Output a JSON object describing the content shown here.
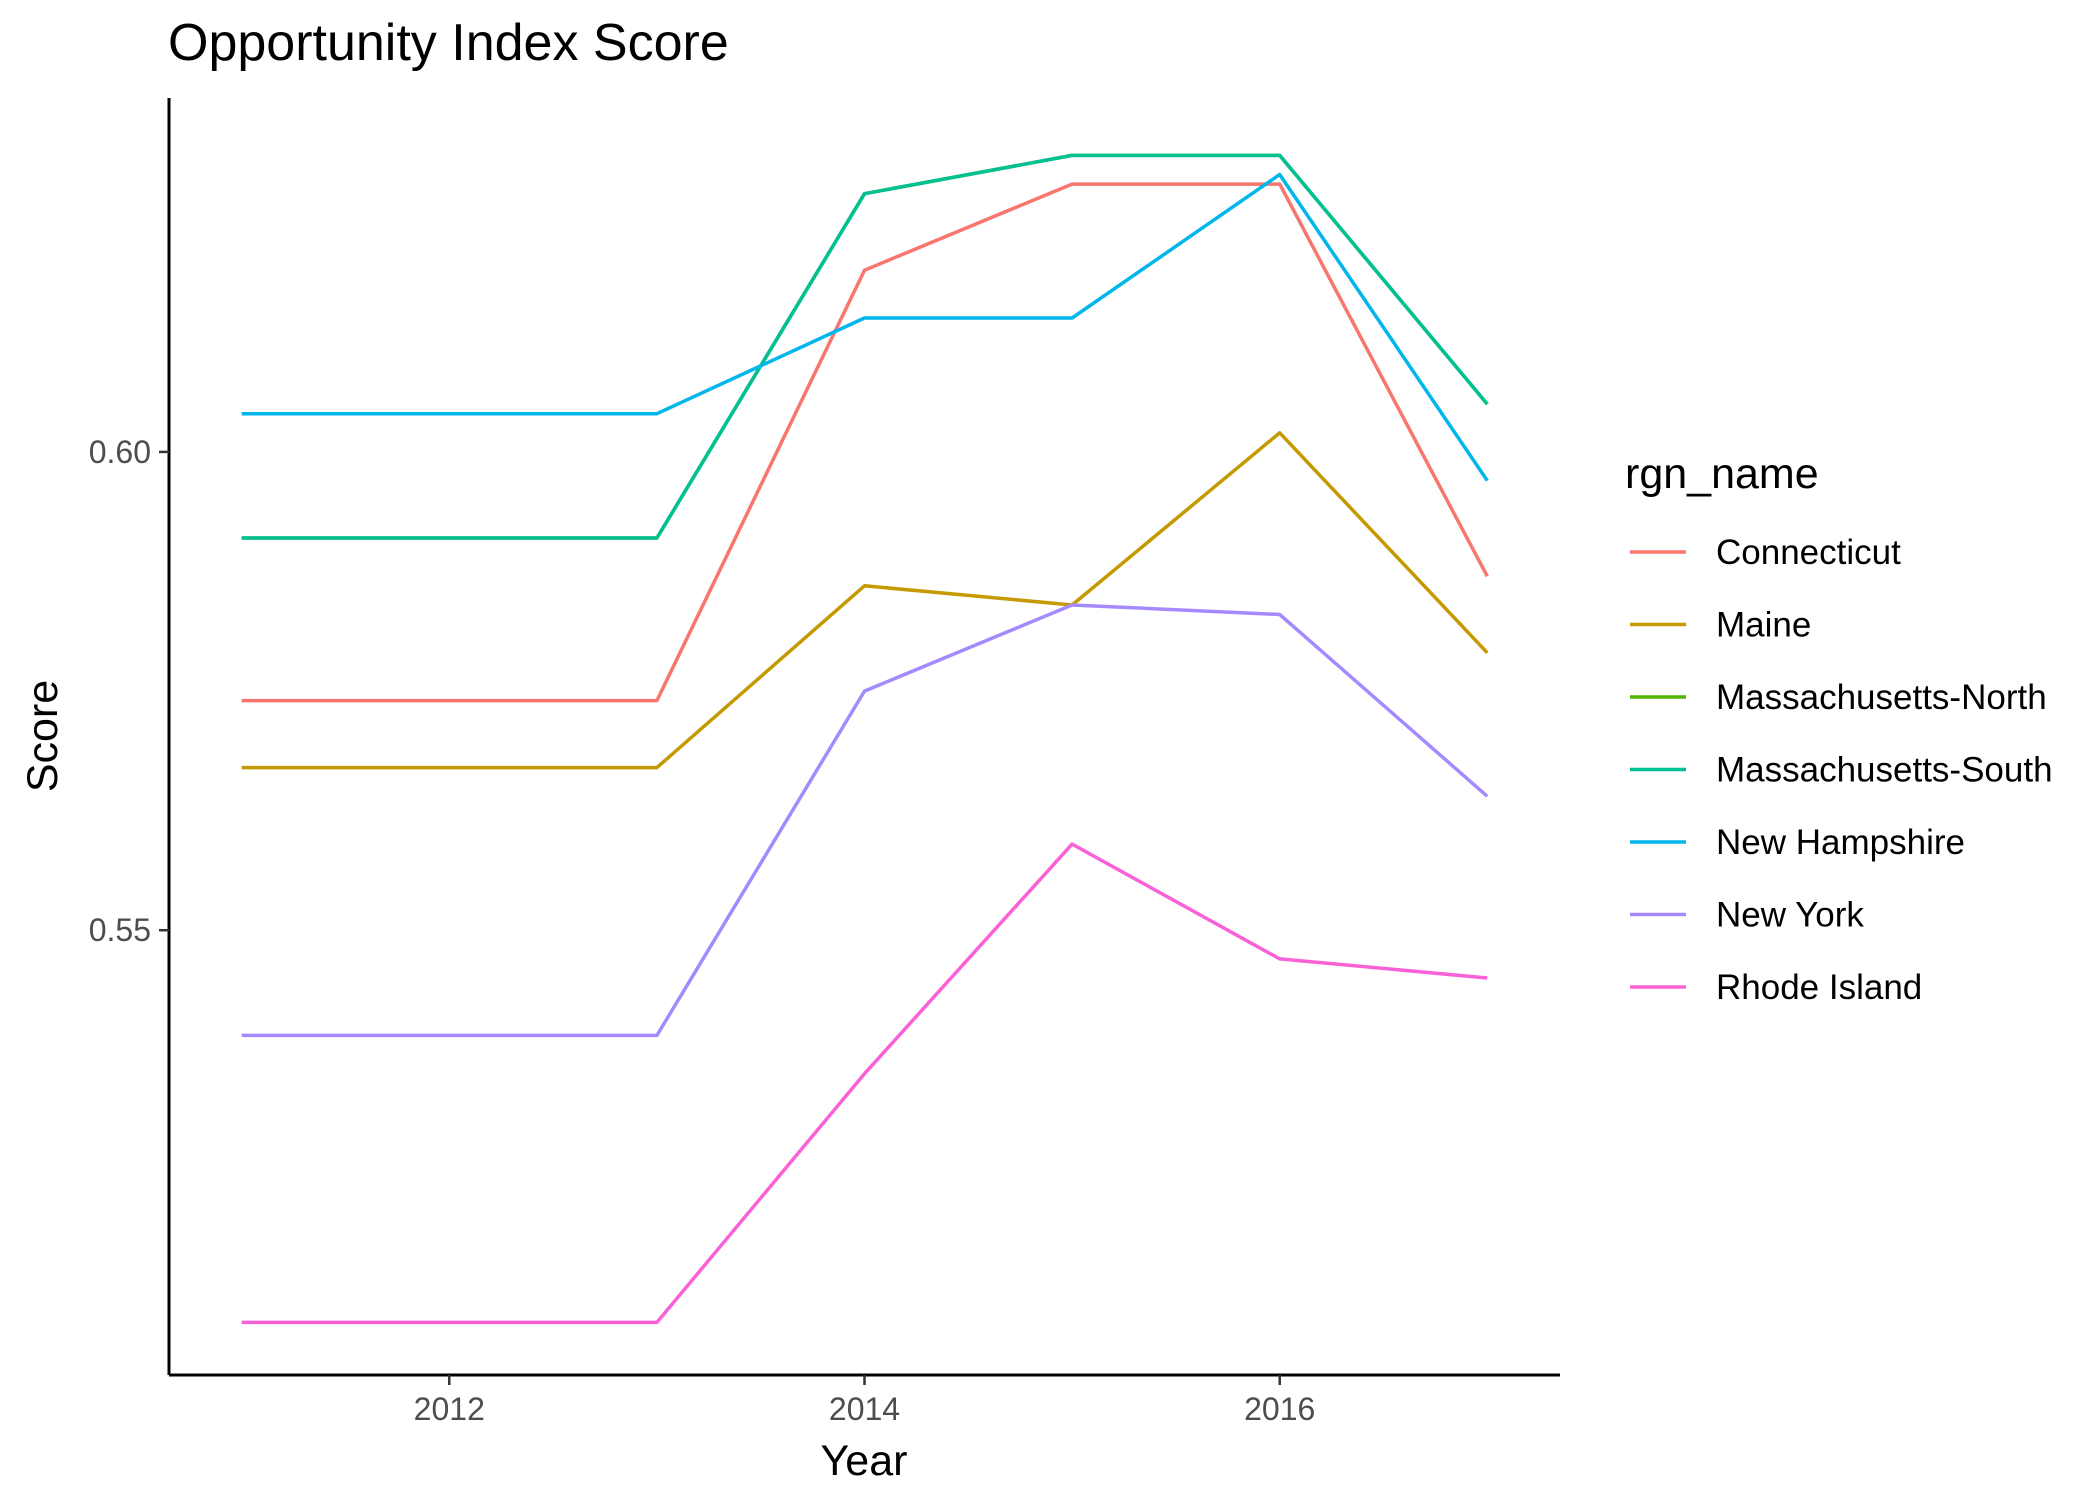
{
  "chart_data": {
    "type": "line",
    "title": "Opportunity Index Score",
    "xlabel": "Year",
    "ylabel": "Score",
    "x": [
      2011,
      2012,
      2013,
      2014,
      2015,
      2016,
      2017
    ],
    "xlim": [
      2010.65,
      2017.35
    ],
    "ylim": [
      0.5035,
      0.637
    ],
    "x_ticks": [
      2012,
      2014,
      2016
    ],
    "x_tick_labels": [
      "2012",
      "2014",
      "2016"
    ],
    "y_ticks": [
      0.55,
      0.6
    ],
    "y_tick_labels": [
      "0.55",
      "0.60"
    ],
    "grid": false,
    "legend_title": "rgn_name",
    "legend_position": "right",
    "series": [
      {
        "name": "Connecticut",
        "color": "#F8766D",
        "values": [
          0.574,
          0.574,
          0.574,
          0.619,
          0.628,
          0.628,
          0.587
        ]
      },
      {
        "name": "Maine",
        "color": "#C49A00",
        "values": [
          0.567,
          0.567,
          0.567,
          0.586,
          0.584,
          0.602,
          0.579
        ]
      },
      {
        "name": "Massachusetts-North",
        "color": "#53B400",
        "values": [
          0.591,
          0.591,
          0.591,
          0.627,
          0.631,
          0.631,
          0.605
        ]
      },
      {
        "name": "Massachusetts-South",
        "color": "#00C094",
        "values": [
          0.591,
          0.591,
          0.591,
          0.627,
          0.631,
          0.631,
          0.605
        ]
      },
      {
        "name": "New Hampshire",
        "color": "#00B6EB",
        "values": [
          0.604,
          0.604,
          0.604,
          0.614,
          0.614,
          0.629,
          0.597
        ]
      },
      {
        "name": "New York",
        "color": "#A58AFF",
        "values": [
          0.539,
          0.539,
          0.539,
          0.575,
          0.584,
          0.583,
          0.564
        ]
      },
      {
        "name": "Rhode Island",
        "color": "#FB61D7",
        "values": [
          0.509,
          0.509,
          0.509,
          0.535,
          0.559,
          0.547,
          0.545
        ]
      }
    ]
  }
}
